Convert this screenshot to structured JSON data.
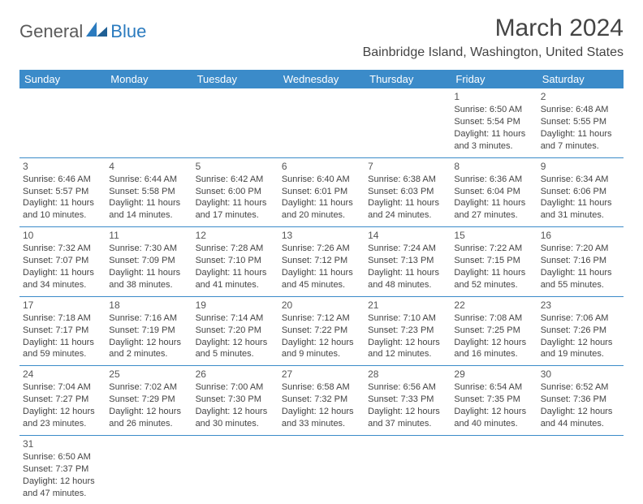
{
  "logo": {
    "general": "General",
    "blue": "Blue"
  },
  "title": "March 2024",
  "location": "Bainbridge Island, Washington, United States",
  "colors": {
    "header_bg": "#3b8bc9",
    "header_text": "#ffffff",
    "border": "#3b8bc9",
    "text": "#444444",
    "logo_blue": "#2b7bbf",
    "logo_gray": "#5a5a5a",
    "background": "#ffffff"
  },
  "calendar": {
    "type": "table",
    "columns": [
      "Sunday",
      "Monday",
      "Tuesday",
      "Wednesday",
      "Thursday",
      "Friday",
      "Saturday"
    ],
    "rows": [
      [
        null,
        null,
        null,
        null,
        null,
        {
          "n": "1",
          "sr": "Sunrise: 6:50 AM",
          "ss": "Sunset: 5:54 PM",
          "d1": "Daylight: 11 hours",
          "d2": "and 3 minutes."
        },
        {
          "n": "2",
          "sr": "Sunrise: 6:48 AM",
          "ss": "Sunset: 5:55 PM",
          "d1": "Daylight: 11 hours",
          "d2": "and 7 minutes."
        }
      ],
      [
        {
          "n": "3",
          "sr": "Sunrise: 6:46 AM",
          "ss": "Sunset: 5:57 PM",
          "d1": "Daylight: 11 hours",
          "d2": "and 10 minutes."
        },
        {
          "n": "4",
          "sr": "Sunrise: 6:44 AM",
          "ss": "Sunset: 5:58 PM",
          "d1": "Daylight: 11 hours",
          "d2": "and 14 minutes."
        },
        {
          "n": "5",
          "sr": "Sunrise: 6:42 AM",
          "ss": "Sunset: 6:00 PM",
          "d1": "Daylight: 11 hours",
          "d2": "and 17 minutes."
        },
        {
          "n": "6",
          "sr": "Sunrise: 6:40 AM",
          "ss": "Sunset: 6:01 PM",
          "d1": "Daylight: 11 hours",
          "d2": "and 20 minutes."
        },
        {
          "n": "7",
          "sr": "Sunrise: 6:38 AM",
          "ss": "Sunset: 6:03 PM",
          "d1": "Daylight: 11 hours",
          "d2": "and 24 minutes."
        },
        {
          "n": "8",
          "sr": "Sunrise: 6:36 AM",
          "ss": "Sunset: 6:04 PM",
          "d1": "Daylight: 11 hours",
          "d2": "and 27 minutes."
        },
        {
          "n": "9",
          "sr": "Sunrise: 6:34 AM",
          "ss": "Sunset: 6:06 PM",
          "d1": "Daylight: 11 hours",
          "d2": "and 31 minutes."
        }
      ],
      [
        {
          "n": "10",
          "sr": "Sunrise: 7:32 AM",
          "ss": "Sunset: 7:07 PM",
          "d1": "Daylight: 11 hours",
          "d2": "and 34 minutes."
        },
        {
          "n": "11",
          "sr": "Sunrise: 7:30 AM",
          "ss": "Sunset: 7:09 PM",
          "d1": "Daylight: 11 hours",
          "d2": "and 38 minutes."
        },
        {
          "n": "12",
          "sr": "Sunrise: 7:28 AM",
          "ss": "Sunset: 7:10 PM",
          "d1": "Daylight: 11 hours",
          "d2": "and 41 minutes."
        },
        {
          "n": "13",
          "sr": "Sunrise: 7:26 AM",
          "ss": "Sunset: 7:12 PM",
          "d1": "Daylight: 11 hours",
          "d2": "and 45 minutes."
        },
        {
          "n": "14",
          "sr": "Sunrise: 7:24 AM",
          "ss": "Sunset: 7:13 PM",
          "d1": "Daylight: 11 hours",
          "d2": "and 48 minutes."
        },
        {
          "n": "15",
          "sr": "Sunrise: 7:22 AM",
          "ss": "Sunset: 7:15 PM",
          "d1": "Daylight: 11 hours",
          "d2": "and 52 minutes."
        },
        {
          "n": "16",
          "sr": "Sunrise: 7:20 AM",
          "ss": "Sunset: 7:16 PM",
          "d1": "Daylight: 11 hours",
          "d2": "and 55 minutes."
        }
      ],
      [
        {
          "n": "17",
          "sr": "Sunrise: 7:18 AM",
          "ss": "Sunset: 7:17 PM",
          "d1": "Daylight: 11 hours",
          "d2": "and 59 minutes."
        },
        {
          "n": "18",
          "sr": "Sunrise: 7:16 AM",
          "ss": "Sunset: 7:19 PM",
          "d1": "Daylight: 12 hours",
          "d2": "and 2 minutes."
        },
        {
          "n": "19",
          "sr": "Sunrise: 7:14 AM",
          "ss": "Sunset: 7:20 PM",
          "d1": "Daylight: 12 hours",
          "d2": "and 5 minutes."
        },
        {
          "n": "20",
          "sr": "Sunrise: 7:12 AM",
          "ss": "Sunset: 7:22 PM",
          "d1": "Daylight: 12 hours",
          "d2": "and 9 minutes."
        },
        {
          "n": "21",
          "sr": "Sunrise: 7:10 AM",
          "ss": "Sunset: 7:23 PM",
          "d1": "Daylight: 12 hours",
          "d2": "and 12 minutes."
        },
        {
          "n": "22",
          "sr": "Sunrise: 7:08 AM",
          "ss": "Sunset: 7:25 PM",
          "d1": "Daylight: 12 hours",
          "d2": "and 16 minutes."
        },
        {
          "n": "23",
          "sr": "Sunrise: 7:06 AM",
          "ss": "Sunset: 7:26 PM",
          "d1": "Daylight: 12 hours",
          "d2": "and 19 minutes."
        }
      ],
      [
        {
          "n": "24",
          "sr": "Sunrise: 7:04 AM",
          "ss": "Sunset: 7:27 PM",
          "d1": "Daylight: 12 hours",
          "d2": "and 23 minutes."
        },
        {
          "n": "25",
          "sr": "Sunrise: 7:02 AM",
          "ss": "Sunset: 7:29 PM",
          "d1": "Daylight: 12 hours",
          "d2": "and 26 minutes."
        },
        {
          "n": "26",
          "sr": "Sunrise: 7:00 AM",
          "ss": "Sunset: 7:30 PM",
          "d1": "Daylight: 12 hours",
          "d2": "and 30 minutes."
        },
        {
          "n": "27",
          "sr": "Sunrise: 6:58 AM",
          "ss": "Sunset: 7:32 PM",
          "d1": "Daylight: 12 hours",
          "d2": "and 33 minutes."
        },
        {
          "n": "28",
          "sr": "Sunrise: 6:56 AM",
          "ss": "Sunset: 7:33 PM",
          "d1": "Daylight: 12 hours",
          "d2": "and 37 minutes."
        },
        {
          "n": "29",
          "sr": "Sunrise: 6:54 AM",
          "ss": "Sunset: 7:35 PM",
          "d1": "Daylight: 12 hours",
          "d2": "and 40 minutes."
        },
        {
          "n": "30",
          "sr": "Sunrise: 6:52 AM",
          "ss": "Sunset: 7:36 PM",
          "d1": "Daylight: 12 hours",
          "d2": "and 44 minutes."
        }
      ],
      [
        {
          "n": "31",
          "sr": "Sunrise: 6:50 AM",
          "ss": "Sunset: 7:37 PM",
          "d1": "Daylight: 12 hours",
          "d2": "and 47 minutes."
        },
        null,
        null,
        null,
        null,
        null,
        null
      ]
    ]
  }
}
